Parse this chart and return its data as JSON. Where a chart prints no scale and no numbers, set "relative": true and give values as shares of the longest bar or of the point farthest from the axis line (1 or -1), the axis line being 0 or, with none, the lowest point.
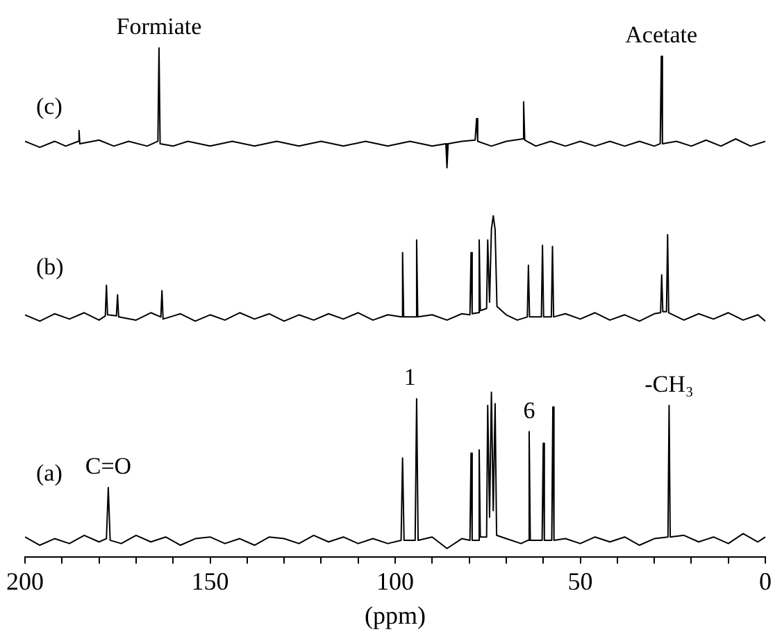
{
  "chart_data": [
    {
      "type": "line",
      "relative": true,
      "tick_labels": false,
      "xlim": [
        200,
        0
      ],
      "annotations": [
        "(c)",
        {
          "text": "Formiate",
          "x": 163.8,
          "y": 1
        },
        {
          "text": "Acetate",
          "x": 28.1,
          "y": 0.93
        }
      ],
      "series": [
        {
          "color": "#000000",
          "x": [
            200,
            196,
            192,
            189,
            185.6,
            185.4,
            185.2,
            180,
            176,
            172,
            167,
            164.1,
            163.8,
            163.5,
            160,
            156,
            150,
            144,
            138,
            132,
            126,
            120,
            114,
            108,
            102,
            96,
            90,
            86.3,
            86,
            85.7,
            82,
            78.4,
            78,
            77.7,
            74,
            70,
            65.6,
            65.3,
            65,
            62,
            58,
            54,
            50,
            46,
            42,
            38,
            34,
            30,
            28.4,
            28.1,
            27.8,
            24,
            20,
            16,
            12,
            8,
            4,
            0
          ],
          "values": [
            0.22,
            0.17,
            0.22,
            0.18,
            0.22,
            0.31,
            0.2,
            0.23,
            0.18,
            0.22,
            0.18,
            0.22,
            1,
            0.2,
            0.18,
            0.22,
            0.18,
            0.22,
            0.18,
            0.22,
            0.18,
            0.22,
            0.18,
            0.22,
            0.18,
            0.22,
            0.18,
            0.2,
            0,
            0.2,
            0.22,
            0.23,
            0.41,
            0.22,
            0.18,
            0.22,
            0.24,
            0.55,
            0.23,
            0.18,
            0.22,
            0.18,
            0.22,
            0.18,
            0.22,
            0.18,
            0.22,
            0.18,
            0.2,
            0.93,
            0.2,
            0.22,
            0.18,
            0.23,
            0.18,
            0.24,
            0.18,
            0.22
          ]
        }
      ]
    },
    {
      "type": "line",
      "relative": true,
      "tick_labels": false,
      "xlim": [
        200,
        0
      ],
      "annotations": [
        "(b)"
      ],
      "series": [
        {
          "color": "#000000",
          "x": [
            200,
            196,
            192,
            188,
            184,
            180,
            178.3,
            178,
            177.7,
            175.3,
            175,
            174.7,
            170,
            166,
            163.3,
            163,
            162.7,
            158,
            154,
            150,
            146,
            142,
            138,
            134,
            130,
            126,
            122,
            118,
            114,
            110,
            106,
            102,
            98.3,
            98,
            97.7,
            94.5,
            94.2,
            93.9,
            90,
            86,
            82,
            79.8,
            79.5,
            79.2,
            77.6,
            77.3,
            77,
            75.3,
            75,
            74.5,
            74,
            73.5,
            73,
            72.5,
            70,
            67,
            64.3,
            64,
            63.7,
            60.5,
            60.2,
            59.9,
            57.8,
            57.5,
            57.2,
            54,
            50,
            46,
            42,
            38,
            34,
            30,
            28.3,
            28,
            27.7,
            26.7,
            26.4,
            26.1,
            22,
            18,
            14,
            10,
            6,
            2,
            0
          ],
          "values": [
            0.06,
            0,
            0.07,
            0.02,
            0.08,
            0.01,
            0.05,
            0.34,
            0.06,
            0.05,
            0.25,
            0.04,
            0.01,
            0.08,
            0.04,
            0.29,
            0.02,
            0.07,
            0,
            0.06,
            0.01,
            0.08,
            0.02,
            0.07,
            0,
            0.06,
            0.01,
            0.07,
            0.02,
            0.08,
            0.01,
            0.06,
            0.04,
            0.65,
            0.04,
            0.04,
            0.77,
            0.04,
            0.06,
            0.01,
            0.07,
            0.06,
            0.65,
            0.07,
            0.08,
            0.77,
            0.1,
            0.12,
            0.77,
            0.18,
            0.87,
            1,
            0.87,
            0.14,
            0.06,
            0.01,
            0.04,
            0.53,
            0.04,
            0.04,
            0.72,
            0.04,
            0.04,
            0.71,
            0.04,
            0.07,
            0.02,
            0.08,
            0.01,
            0.06,
            0,
            0.07,
            0.08,
            0.44,
            0.09,
            0.09,
            0.82,
            0.08,
            0.01,
            0.07,
            0.02,
            0.08,
            0.01,
            0.06,
            0
          ]
        }
      ]
    },
    {
      "type": "line",
      "relative": true,
      "tick_labels": "x",
      "xlabel": "(ppm)",
      "xlim": [
        200,
        0
      ],
      "xticks": [
        200,
        {
          "value": 190,
          "label": null
        },
        {
          "value": 180,
          "label": null
        },
        {
          "value": 170,
          "label": null
        },
        {
          "value": 160,
          "label": null
        },
        150,
        {
          "value": 140,
          "label": null
        },
        {
          "value": 130,
          "label": null
        },
        {
          "value": 120,
          "label": null
        },
        {
          "value": 110,
          "label": null
        },
        100,
        {
          "value": 90,
          "label": null
        },
        {
          "value": 80,
          "label": null
        },
        {
          "value": 70,
          "label": null
        },
        {
          "value": 60,
          "label": null
        },
        50,
        {
          "value": 40,
          "label": null
        },
        {
          "value": 30,
          "label": null
        },
        {
          "value": 20,
          "label": null
        },
        {
          "value": 10,
          "label": null
        },
        0
      ],
      "annotations": [
        "(a)",
        {
          "text": "C=O",
          "x": 177.5,
          "y": 0.42
        },
        {
          "text": "1",
          "x": 96,
          "y": 0.96
        },
        {
          "text": "6",
          "x": 63.8,
          "y": 0.76
        },
        {
          "text": "-CH₃",
          "x": 26,
          "y": 0.92
        }
      ],
      "series": [
        {
          "color": "#000000",
          "x": [
            200,
            196,
            192,
            188,
            184,
            180,
            178,
            177.5,
            177,
            174,
            170,
            166,
            162,
            158,
            154,
            150,
            146,
            142,
            138,
            134,
            130,
            126,
            122,
            118,
            114,
            110,
            106,
            102,
            98.4,
            98,
            97.6,
            94.6,
            94.2,
            93.8,
            90,
            86,
            82,
            79.8,
            79.5,
            79.2,
            77.6,
            77.3,
            77,
            75.3,
            75,
            74.5,
            74,
            73.5,
            73,
            72.6,
            70,
            66,
            64.1,
            63.8,
            63.5,
            60.3,
            60,
            59.7,
            57.7,
            57.4,
            57.1,
            54,
            50,
            46,
            42,
            38,
            34,
            30,
            26.3,
            26,
            25.7,
            22,
            18,
            14,
            10,
            6,
            2,
            0
          ],
          "values": [
            0.12,
            0.07,
            0.11,
            0.08,
            0.13,
            0.09,
            0.11,
            0.42,
            0.1,
            0.08,
            0.13,
            0.09,
            0.12,
            0.07,
            0.11,
            0.12,
            0.08,
            0.11,
            0.07,
            0.12,
            0.11,
            0.08,
            0.13,
            0.09,
            0.12,
            0.08,
            0.11,
            0.08,
            0.1,
            0.6,
            0.1,
            0.1,
            0.96,
            0.1,
            0.12,
            0.05,
            0.11,
            0.1,
            0.63,
            0.1,
            0.1,
            0.65,
            0.12,
            0.12,
            0.92,
            0.24,
            1,
            0.28,
            0.93,
            0.13,
            0.11,
            0.08,
            0.1,
            0.76,
            0.1,
            0.1,
            0.69,
            0.1,
            0.1,
            0.91,
            0.1,
            0.11,
            0.08,
            0.12,
            0.09,
            0.12,
            0.07,
            0.11,
            0.12,
            0.92,
            0.12,
            0.13,
            0.09,
            0.12,
            0.08,
            0.14,
            0.09,
            0.12
          ]
        }
      ]
    }
  ]
}
